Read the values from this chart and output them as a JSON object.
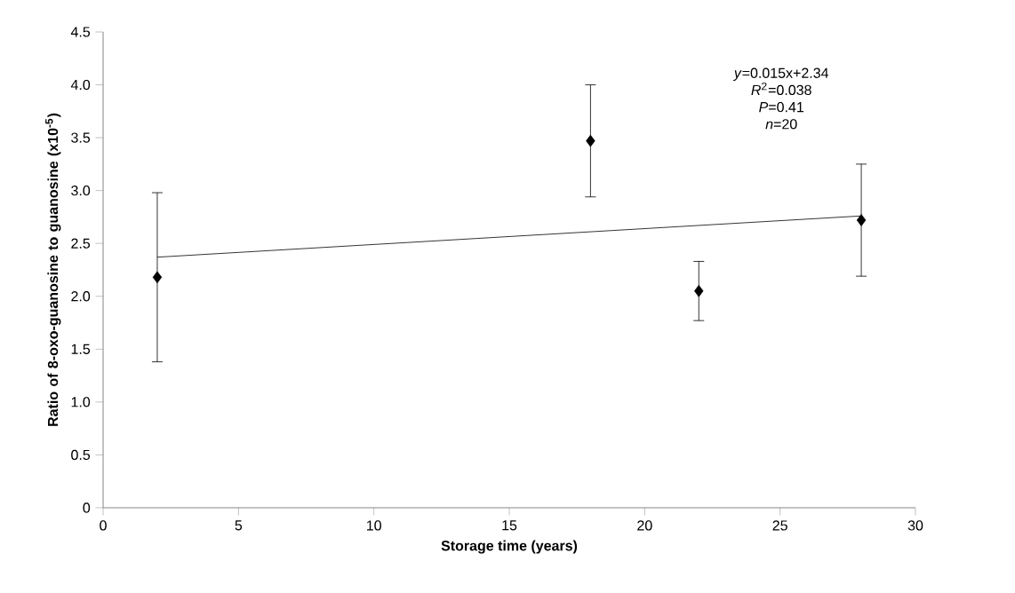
{
  "chart_data": {
    "type": "scatter",
    "xlabel": "Storage time (years)",
    "ylabel": "Ratio of 8-oxo-guanosine to guanosine (x10$^{-5}$)",
    "annotations": [
      "*y*=0.015x+2.34",
      "*R*$^{2}$=0.038",
      "*P*=0.41",
      "*n*=20"
    ],
    "series": [
      {
        "color": "#000000",
        "marker": "diamond",
        "x": [
          2,
          18,
          22,
          28
        ],
        "values": [
          2.18,
          3.47,
          2.05,
          2.72
        ],
        "errors": [
          0.8,
          0.53,
          0.28,
          0.53
        ]
      },
      {
        "type": "line",
        "color": "#000000",
        "marker": "none",
        "line_style": "solid",
        "x": [
          2,
          28
        ],
        "values": [
          2.37,
          2.76
        ]
      }
    ],
    "xlim": [
      0,
      30
    ],
    "xticks": [
      0,
      5,
      10,
      15,
      20,
      25,
      30
    ],
    "ylim": [
      0,
      4.5
    ],
    "yticks": [
      0,
      {
        "value": 0.5,
        "label": "0.5"
      },
      {
        "value": 1,
        "label": "1.0"
      },
      {
        "value": 1.5,
        "label": "1.5"
      },
      {
        "value": 2,
        "label": "2.0"
      },
      {
        "value": 2.5,
        "label": "2.5"
      },
      {
        "value": 3,
        "label": "3.0"
      },
      {
        "value": 3.5,
        "label": "3.5"
      },
      {
        "value": 4,
        "label": "4.0"
      },
      {
        "value": 4.5,
        "label": "4.5"
      }
    ],
    "grid": false
  }
}
